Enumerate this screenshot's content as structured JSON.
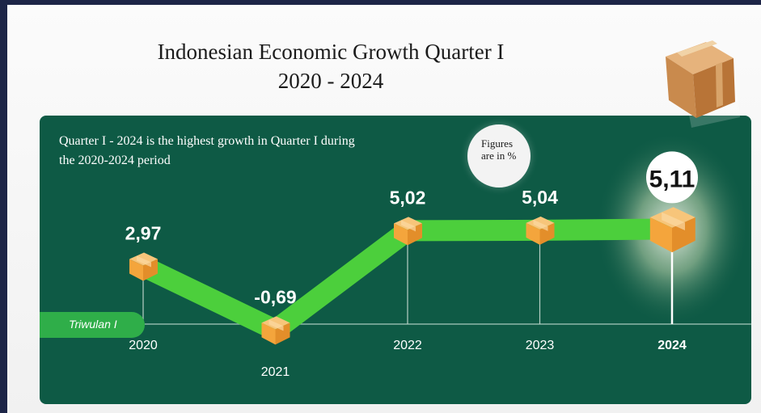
{
  "title": {
    "line1": "Indonesian Economic Growth Quarter I",
    "line2": "2020 - 2024"
  },
  "note": "Quarter I - 2024 is the highest growth in Quarter I during the 2020-2024 period",
  "figures_note": "Figures are in %",
  "axis_tag": "Triwulan I",
  "icons": {
    "marker": "package-box-icon",
    "hero": "falling-package-icon"
  },
  "colors": {
    "panel": "#0e5a45",
    "line": "#4ccf3c",
    "marker": "#f4a53c",
    "tag": "#2fae49"
  },
  "chart_data": {
    "type": "line",
    "title": "Indonesian Economic Growth Quarter I 2020 - 2024",
    "x": [
      "2020",
      "2021",
      "2022",
      "2023",
      "2024"
    ],
    "series": [
      {
        "values": [
          2.97,
          -0.69,
          5.02,
          5.04,
          5.11
        ]
      }
    ],
    "value_labels": [
      "2,97",
      "-0,69",
      "5,02",
      "5,04",
      "5,11"
    ],
    "highlight": "2024",
    "grid": false,
    "legend": "none"
  }
}
